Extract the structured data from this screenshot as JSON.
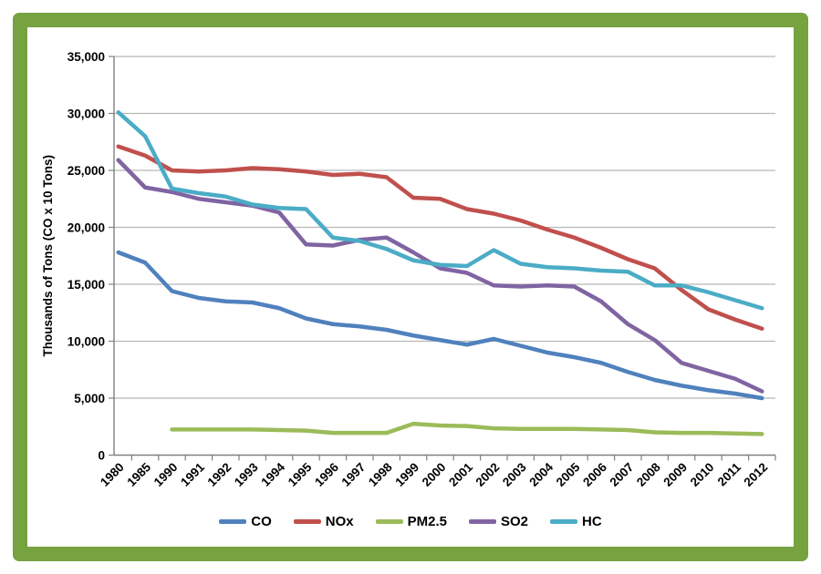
{
  "page": {
    "background_color": "#FFFFFF",
    "frame_color": "#76A240"
  },
  "chart_data": {
    "type": "line",
    "title": "",
    "xlabel": "",
    "ylabel": "Thousands of Tons (CO x 10 Tons)",
    "ylim": [
      0,
      35000
    ],
    "yticks": [
      0,
      5000,
      10000,
      15000,
      20000,
      25000,
      30000,
      35000
    ],
    "grid": "horizontal",
    "legend_position": "bottom",
    "axis_color": "#808080",
    "gridline_color": "#B7B7B7",
    "label_color": "#000000",
    "categories": [
      "1980",
      "1985",
      "1990",
      "1991",
      "1992",
      "1993",
      "1994",
      "1995",
      "1996",
      "1997",
      "1998",
      "1999",
      "2000",
      "2001",
      "2002",
      "2003",
      "2004",
      "2005",
      "2006",
      "2007",
      "2008",
      "2009",
      "2010",
      "2011",
      "2012"
    ],
    "series": [
      {
        "name": "CO",
        "color": "#4F81BD",
        "values": [
          17800,
          16900,
          14400,
          13800,
          13500,
          13400,
          12900,
          12000,
          11500,
          11300,
          11000,
          10500,
          10100,
          9700,
          10200,
          9600,
          9000,
          8600,
          8100,
          7300,
          6600,
          6100,
          5700,
          5400,
          5000
        ]
      },
      {
        "name": "NOx",
        "color": "#C0504D",
        "values": [
          27100,
          26300,
          25000,
          24900,
          25000,
          25200,
          25100,
          24900,
          24600,
          24700,
          24400,
          22600,
          22500,
          21600,
          21200,
          20600,
          19800,
          19100,
          18200,
          17200,
          16400,
          14500,
          12800,
          11900,
          11100
        ]
      },
      {
        "name": "PM2.5",
        "color": "#9BBB59",
        "values": [
          null,
          null,
          2250,
          2250,
          2250,
          2250,
          2200,
          2150,
          1950,
          1950,
          1950,
          2750,
          2600,
          2550,
          2350,
          2300,
          2300,
          2300,
          2250,
          2200,
          2000,
          1950,
          1950,
          1900,
          1850
        ]
      },
      {
        "name": "SO2",
        "color": "#8064A2",
        "values": [
          25900,
          23500,
          23100,
          22500,
          22200,
          21900,
          21300,
          18500,
          18400,
          18900,
          19100,
          17800,
          16400,
          16000,
          14900,
          14800,
          14900,
          14800,
          13500,
          11500,
          10100,
          8100,
          7400,
          6700,
          5600
        ]
      },
      {
        "name": "HC",
        "color": "#4BACC6",
        "values": [
          30100,
          28000,
          23400,
          23000,
          22700,
          22000,
          21700,
          21600,
          19100,
          18800,
          18100,
          17100,
          16700,
          16600,
          18000,
          16800,
          16500,
          16400,
          16200,
          16100,
          14900,
          14900,
          14300,
          13600,
          12900
        ]
      }
    ]
  }
}
